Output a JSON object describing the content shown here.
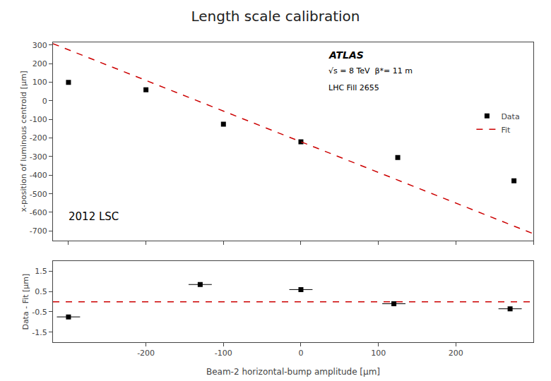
{
  "chart_data": [
    {
      "type": "scatter",
      "title": "Length scale calibration",
      "ylabel": "x-position of luminous centroid [μm]",
      "xlim": [
        -320,
        300
      ],
      "xticks": [
        -300,
        -200,
        -100,
        0,
        100,
        200,
        300
      ],
      "ylim": [
        -750,
        315
      ],
      "yticks": [
        300,
        200,
        100,
        0,
        -100,
        -200,
        -300,
        -400,
        -500,
        -600,
        -700
      ],
      "tick_labels": "y",
      "grid": false,
      "legend": "upper right",
      "annotations": [
        "ATLAS",
        "√s = 8 TeV  β*= 11 m",
        "LHC Fill 2655",
        "2012 LSC"
      ],
      "series": [
        {
          "name": "Data",
          "type": "scatter",
          "marker": "square",
          "color": "#000000",
          "x": [
            -300,
            -200,
            -100,
            0,
            125,
            275
          ],
          "values": [
            100,
            60,
            -125,
            -220,
            -305,
            -430
          ]
        },
        {
          "name": "Fit",
          "type": "line",
          "line_style": "dashed",
          "color": "#cc0000",
          "x": [
            -320,
            300
          ],
          "values": [
            308,
            -715
          ]
        }
      ]
    },
    {
      "type": "scatter",
      "xlabel": "Beam-2 horizontal-bump amplitude [μm]",
      "ylabel": "Data - Fit [μm]",
      "xlim": [
        -320,
        300
      ],
      "xticks": [
        -200,
        -100,
        0,
        100,
        200
      ],
      "ylim": [
        -2,
        2
      ],
      "yticks": [
        -1.5,
        -0.5,
        0.5,
        1.5
      ],
      "grid": false,
      "series": [
        {
          "type": "scatter",
          "marker": "square",
          "color": "#000000",
          "x": [
            -300,
            -130,
            0,
            120,
            270
          ],
          "values": [
            -0.75,
            0.85,
            0.6,
            -0.1,
            -0.35
          ],
          "x_errors": [
            15,
            15,
            15,
            15,
            15
          ],
          "y_errors": [
            0.1,
            0.1,
            0.1,
            0.1,
            0.1
          ]
        },
        {
          "type": "line",
          "line_style": "dashed",
          "color": "#cc0000",
          "x": [
            -320,
            300
          ],
          "values": [
            0,
            0
          ]
        }
      ]
    }
  ]
}
